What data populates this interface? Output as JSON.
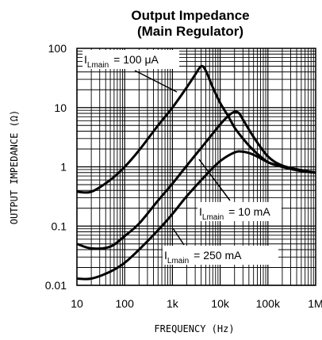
{
  "chart_data": {
    "type": "line",
    "title": "Output Impedance",
    "subtitle": "(Main Regulator)",
    "xlabel": "FREQUENCY (Hz)",
    "ylabel": "OUTPUT IMPEDANCE (Ω)",
    "x_scale": "log",
    "y_scale": "log",
    "xlim": [
      10,
      1000000
    ],
    "ylim": [
      0.01,
      100
    ],
    "grid": true,
    "x_ticks": [
      {
        "value": 10,
        "label": "10"
      },
      {
        "value": 100,
        "label": "100"
      },
      {
        "value": 1000,
        "label": "1k"
      },
      {
        "value": 10000,
        "label": "10k"
      },
      {
        "value": 100000,
        "label": "100k"
      },
      {
        "value": 1000000,
        "label": "1M"
      }
    ],
    "y_ticks": [
      {
        "value": 0.01,
        "label": "0.01"
      },
      {
        "value": 0.1,
        "label": "0.1"
      },
      {
        "value": 1,
        "label": "1"
      },
      {
        "value": 10,
        "label": "10"
      },
      {
        "value": 100,
        "label": "100"
      }
    ],
    "series": [
      {
        "label_main": "I",
        "label_sub": "Lmain",
        "label_value": "= 100 μA",
        "x": [
          10,
          20,
          50,
          100,
          200,
          500,
          1000,
          2000,
          3000,
          4000,
          5000,
          7000,
          10000,
          15000,
          20000,
          30000,
          50000,
          100000,
          200000,
          500000,
          1000000
        ],
        "y": [
          0.38,
          0.38,
          0.6,
          1.0,
          1.9,
          5.0,
          10.0,
          22.0,
          36.0,
          50.0,
          42.0,
          22.0,
          12.0,
          7.0,
          4.6,
          3.0,
          1.9,
          1.2,
          1.0,
          0.85,
          0.8
        ]
      },
      {
        "label_main": "I",
        "label_sub": "Lmain",
        "label_value": "= 10 mA",
        "x": [
          10,
          20,
          50,
          100,
          200,
          500,
          1000,
          2000,
          5000,
          10000,
          15000,
          20000,
          25000,
          30000,
          50000,
          100000,
          200000,
          500000,
          1000000
        ],
        "y": [
          0.05,
          0.042,
          0.045,
          0.068,
          0.11,
          0.27,
          0.52,
          1.05,
          2.6,
          5.2,
          7.3,
          8.5,
          8.0,
          6.3,
          3.2,
          1.5,
          1.05,
          0.88,
          0.8
        ]
      },
      {
        "label_main": "I",
        "label_sub": "Lmain",
        "label_value": "= 250 mA",
        "x": [
          10,
          20,
          50,
          100,
          200,
          500,
          1000,
          2000,
          5000,
          10000,
          20000,
          30000,
          50000,
          100000,
          200000,
          500000,
          1000000
        ],
        "y": [
          0.013,
          0.013,
          0.017,
          0.024,
          0.04,
          0.085,
          0.16,
          0.32,
          0.72,
          1.25,
          1.75,
          1.8,
          1.6,
          1.2,
          1.0,
          0.85,
          0.8
        ]
      }
    ]
  }
}
